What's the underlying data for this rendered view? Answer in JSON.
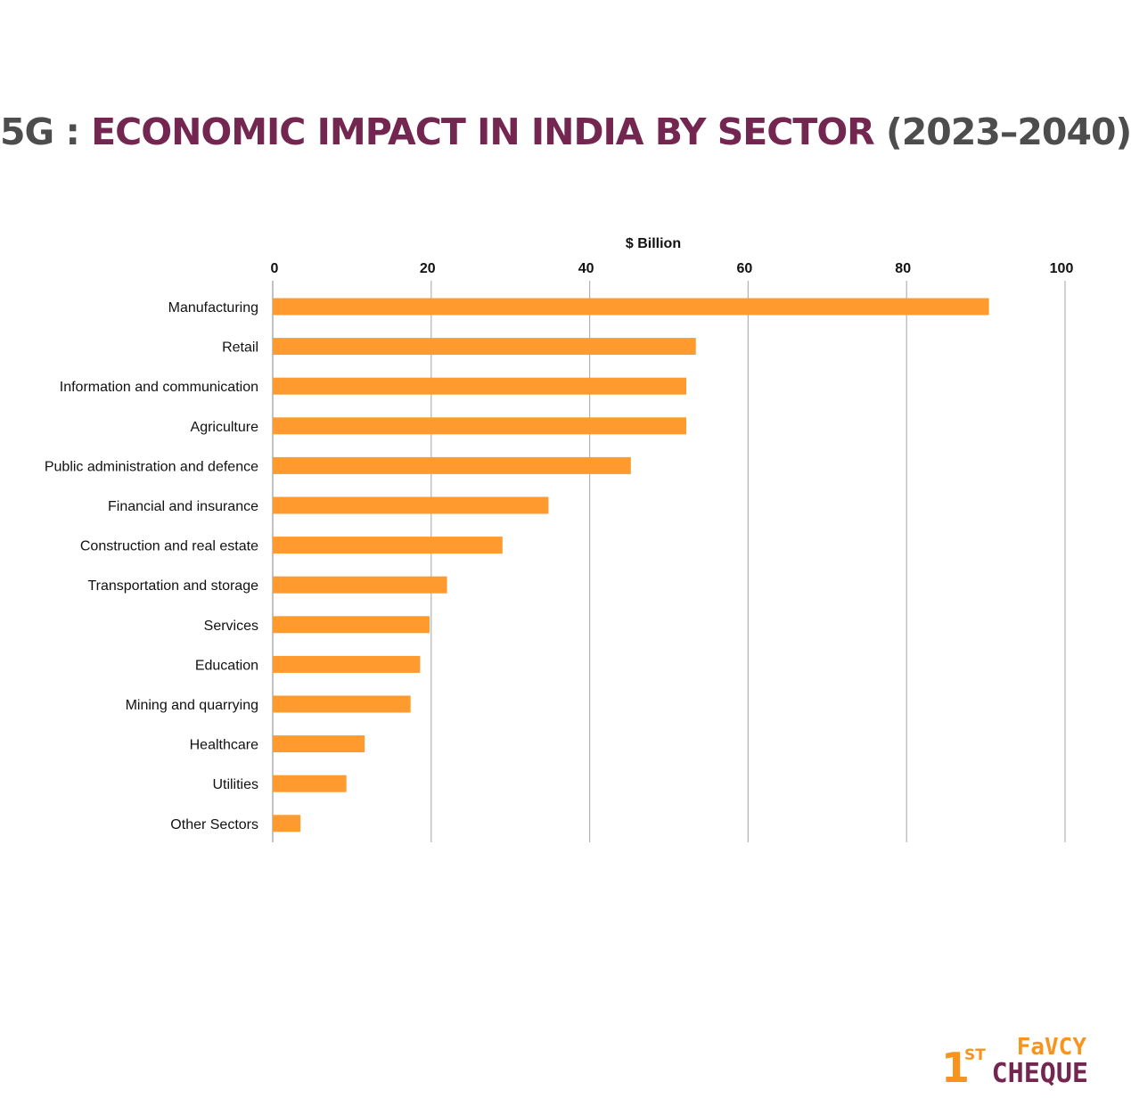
{
  "title": {
    "part1": "5G : ",
    "part2": "ECONOMIC IMPACT IN INDIA BY SECTOR",
    "part3": " (2023–2040)"
  },
  "colors": {
    "bar": "#ff9a2e",
    "grid": "#b3b3b3",
    "title_accent": "#73264f",
    "title_text": "#4d4d4d",
    "logo_orange": "#f7941d",
    "logo_purple": "#73264f"
  },
  "chart_data": {
    "type": "bar",
    "orientation": "horizontal",
    "title": "",
    "xlabel": "$ Billion",
    "ylabel": "",
    "xlim": [
      0,
      100
    ],
    "xticks": [
      0,
      20,
      40,
      60,
      80,
      100
    ],
    "x_axis_position": "top",
    "grid": true,
    "legend": "none",
    "categories": [
      "Manufacturing",
      "Retail",
      "Information and communication",
      "Agriculture",
      "Public administration and defence",
      "Financial and insurance",
      "Construction and real estate",
      "Transportation and storage",
      "Services",
      "Education",
      "Mining and quarrying",
      "Healthcare",
      "Utilities",
      "Other Sectors"
    ],
    "values": [
      90.4,
      53.4,
      52.2,
      52.2,
      45.2,
      34.8,
      29.0,
      22.0,
      19.8,
      18.6,
      17.4,
      11.6,
      9.3,
      3.5
    ]
  },
  "logo": {
    "one": "1",
    "st": "ST",
    "favcy": "FaVCY",
    "cheque": "CHEQUE"
  }
}
